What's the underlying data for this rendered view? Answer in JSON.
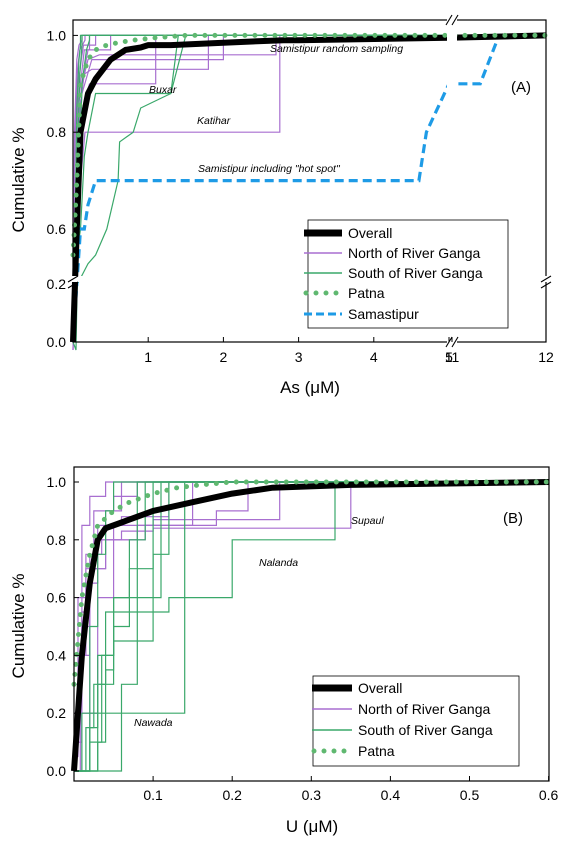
{
  "chart_data": [
    {
      "type": "line",
      "panel_label": "(A)",
      "xlabel": "As (μM)",
      "ylabel": "Cumulative %",
      "xlim": [
        0,
        12
      ],
      "ylim": [
        0,
        1.0
      ],
      "x_axis_break": [
        5,
        11
      ],
      "y_axis_break": [
        0.3,
        0.5
      ],
      "xticks": [
        "1",
        "2",
        "3",
        "4",
        "5",
        "11",
        "12"
      ],
      "yticks": [
        "0.0",
        "0.2",
        "0.6",
        "0.8",
        "1.0"
      ],
      "grid": false,
      "legend_position": "lower-right",
      "legend": [
        {
          "label": "Overall",
          "style": "thick-solid",
          "color": "#000000"
        },
        {
          "label": "North of River Ganga",
          "style": "solid",
          "color": "#a86fd0"
        },
        {
          "label": "South of River Ganga",
          "style": "solid",
          "color": "#3aa86a"
        },
        {
          "label": "Patna",
          "style": "dotted",
          "color": "#5fb870"
        },
        {
          "label": "Samastipur",
          "style": "dashed",
          "color": "#1e9be6"
        }
      ],
      "annotations": [
        "Samistipur random sampling",
        "Buxar",
        "Katihar",
        "Samistipur including \"hot spot\""
      ],
      "series": [
        {
          "name": "Overall",
          "x": [
            0.0,
            0.05,
            0.1,
            0.2,
            0.3,
            0.5,
            0.7,
            0.9,
            1.0,
            1.3,
            2.0,
            2.8,
            3.0,
            5.0,
            12.0
          ],
          "values": [
            0.0,
            0.6,
            0.8,
            0.88,
            0.91,
            0.95,
            0.97,
            0.975,
            0.98,
            0.98,
            0.985,
            0.99,
            0.99,
            0.995,
            1.0
          ]
        },
        {
          "name": "Patna",
          "x": [
            0.0,
            0.05,
            0.1,
            0.2,
            0.3,
            0.45,
            0.6,
            0.8,
            1.1,
            1.5,
            2.0,
            3.0,
            12.0
          ],
          "values": [
            0.3,
            0.7,
            0.9,
            0.95,
            0.97,
            0.98,
            0.985,
            0.99,
            0.995,
            1.0,
            1.0,
            1.0,
            1.0
          ]
        },
        {
          "name": "Samastipur",
          "x": [
            0.0,
            0.1,
            0.15,
            0.2,
            0.3,
            0.45,
            4.6,
            4.7,
            5.0,
            11.3,
            11.5,
            12.0
          ],
          "values": [
            0.0,
            0.6,
            0.6,
            0.65,
            0.7,
            0.7,
            0.7,
            0.8,
            0.9,
            0.9,
            1.0,
            1.0
          ]
        }
      ]
    },
    {
      "type": "line",
      "panel_label": "(B)",
      "xlabel": "U (μM)",
      "ylabel": "Cumulative %",
      "xlim": [
        0,
        0.6
      ],
      "ylim": [
        0,
        1.0
      ],
      "xticks": [
        "0.1",
        "0.2",
        "0.3",
        "0.4",
        "0.5",
        "0.6"
      ],
      "yticks": [
        "0.0",
        "0.2",
        "0.4",
        "0.6",
        "0.8",
        "1.0"
      ],
      "grid": false,
      "legend_position": "lower-right",
      "legend": [
        {
          "label": "Overall",
          "style": "thick-solid",
          "color": "#000000"
        },
        {
          "label": "North of River Ganga",
          "style": "solid",
          "color": "#a86fd0"
        },
        {
          "label": "South of River Ganga",
          "style": "solid",
          "color": "#3aa86a"
        },
        {
          "label": "Patna",
          "style": "dotted",
          "color": "#5fb870"
        }
      ],
      "annotations": [
        "Supaul",
        "Nalanda",
        "Nawada"
      ],
      "series": [
        {
          "name": "Overall",
          "x": [
            0.0,
            0.01,
            0.02,
            0.03,
            0.04,
            0.06,
            0.08,
            0.1,
            0.15,
            0.2,
            0.25,
            0.35,
            0.6
          ],
          "values": [
            0.0,
            0.4,
            0.65,
            0.8,
            0.84,
            0.86,
            0.88,
            0.9,
            0.93,
            0.96,
            0.98,
            0.99,
            1.0
          ]
        },
        {
          "name": "Patna",
          "x": [
            0.0,
            0.01,
            0.02,
            0.03,
            0.05,
            0.07,
            0.1,
            0.13,
            0.16,
            0.2,
            0.6
          ],
          "values": [
            0.3,
            0.6,
            0.75,
            0.85,
            0.9,
            0.93,
            0.96,
            0.98,
            0.99,
            1.0,
            1.0
          ]
        }
      ]
    }
  ]
}
